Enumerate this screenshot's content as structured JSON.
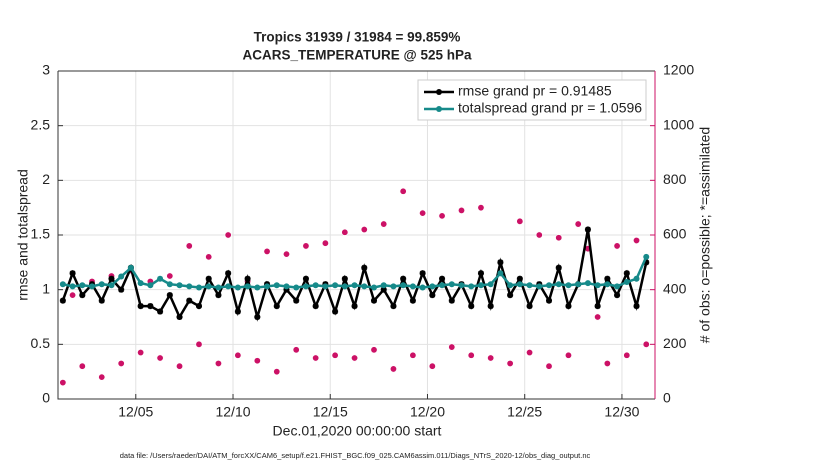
{
  "chart_data": {
    "type": "line",
    "title": "Tropics 31939 / 31984 = 99.859%",
    "subtitle": "ACARS_TEMPERATURE @ 525 hPa",
    "xlabel": "Dec.01,2020 00:00:00 start",
    "ylabel": "rmse and totalspread",
    "y2label": "# of obs: o=possible; *=assimilated",
    "footnote": "data file: /Users/raeder/DAI/ATM_forcXX/CAM6_setup/f.e21.FHIST_BGC.f09_025.CAM6assim.011/Diags_NTrS_2020-12/obs_diag_output.nc",
    "grid": true,
    "legend": "upper right",
    "xlim": [
      0,
      30.7
    ],
    "xticks": [
      {
        "value": 4,
        "label": "12/05"
      },
      {
        "value": 9,
        "label": "12/10"
      },
      {
        "value": 14,
        "label": "12/15"
      },
      {
        "value": 19,
        "label": "12/20"
      },
      {
        "value": 24,
        "label": "12/25"
      },
      {
        "value": 29,
        "label": "12/30"
      }
    ],
    "ylim": [
      0,
      3
    ],
    "yticks": [
      0,
      0.5,
      1,
      1.5,
      2,
      2.5,
      3
    ],
    "y2lim": [
      0,
      1200
    ],
    "y2ticks": [
      0,
      200,
      400,
      600,
      800,
      1000,
      1200
    ],
    "y2color": "#cc1166",
    "x": [
      0.25,
      0.75,
      1.25,
      1.75,
      2.25,
      2.75,
      3.25,
      3.75,
      4.25,
      4.75,
      5.25,
      5.75,
      6.25,
      6.75,
      7.25,
      7.75,
      8.25,
      8.75,
      9.25,
      9.75,
      10.25,
      10.75,
      11.25,
      11.75,
      12.25,
      12.75,
      13.25,
      13.75,
      14.25,
      14.75,
      15.25,
      15.75,
      16.25,
      16.75,
      17.25,
      17.75,
      18.25,
      18.75,
      19.25,
      19.75,
      20.25,
      20.75,
      21.25,
      21.75,
      22.25,
      22.75,
      23.25,
      23.75,
      24.25,
      24.75,
      25.25,
      25.75,
      26.25,
      26.75,
      27.25,
      27.75,
      28.25,
      28.75,
      29.25,
      29.75,
      30.25
    ],
    "series": [
      {
        "name": "rmse grand pr = 0.91485",
        "color": "#000000",
        "marker": "star",
        "values": [
          0.9,
          1.15,
          0.95,
          1.05,
          0.9,
          1.1,
          1.0,
          1.2,
          0.85,
          0.85,
          0.8,
          0.95,
          0.75,
          0.9,
          0.85,
          1.1,
          0.95,
          1.15,
          0.8,
          1.1,
          0.75,
          1.05,
          0.85,
          1.0,
          0.9,
          1.1,
          0.85,
          1.05,
          0.8,
          1.1,
          0.85,
          1.2,
          0.9,
          1.0,
          0.85,
          1.1,
          0.9,
          1.15,
          0.95,
          1.1,
          0.9,
          1.05,
          0.85,
          1.15,
          0.85,
          1.25,
          0.95,
          1.1,
          0.85,
          1.05,
          0.9,
          1.2,
          0.85,
          1.05,
          1.55,
          0.85,
          1.1,
          0.95,
          1.15,
          0.85,
          1.25
        ]
      },
      {
        "name": "totalspread grand pr = 1.0596",
        "color": "#168a8a",
        "marker": "dot",
        "values": [
          1.05,
          1.03,
          1.04,
          1.03,
          1.05,
          1.04,
          1.12,
          1.2,
          1.06,
          1.04,
          1.1,
          1.05,
          1.04,
          1.03,
          1.02,
          1.03,
          1.02,
          1.03,
          1.02,
          1.03,
          1.02,
          1.03,
          1.04,
          1.03,
          1.02,
          1.03,
          1.04,
          1.03,
          1.04,
          1.03,
          1.04,
          1.03,
          1.02,
          1.04,
          1.03,
          1.04,
          1.03,
          1.02,
          1.03,
          1.04,
          1.05,
          1.04,
          1.03,
          1.04,
          1.05,
          1.15,
          1.04,
          1.05,
          1.04,
          1.03,
          1.04,
          1.05,
          1.04,
          1.05,
          1.06,
          1.04,
          1.05,
          1.03,
          1.07,
          1.1,
          1.3
        ]
      },
      {
        "color": "#cc1166",
        "axis": "y2",
        "marker": "obs",
        "values": [
          60,
          380,
          120,
          430,
          80,
          450,
          130,
          470,
          170,
          430,
          150,
          450,
          120,
          560,
          200,
          520,
          130,
          600,
          160,
          430,
          140,
          540,
          100,
          530,
          180,
          560,
          150,
          570,
          160,
          610,
          150,
          620,
          180,
          640,
          110,
          760,
          160,
          680,
          120,
          670,
          190,
          690,
          160,
          700,
          150,
          460,
          130,
          650,
          170,
          600,
          120,
          590,
          160,
          640,
          550,
          300,
          130,
          560,
          160,
          580,
          200
        ]
      }
    ]
  }
}
